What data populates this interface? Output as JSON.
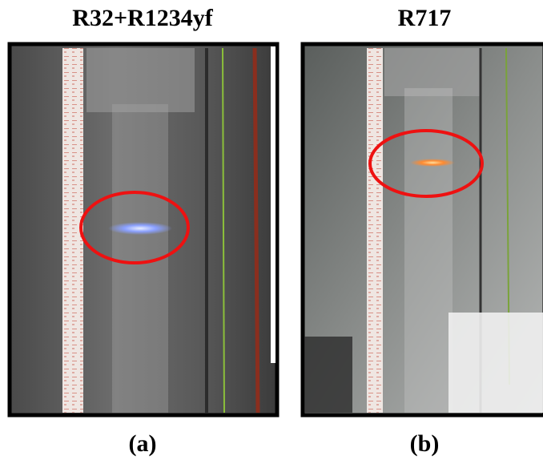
{
  "panels": [
    {
      "title": "R32+R1234yf",
      "label": "(a)"
    },
    {
      "title": "R717",
      "label": "(b)"
    }
  ]
}
